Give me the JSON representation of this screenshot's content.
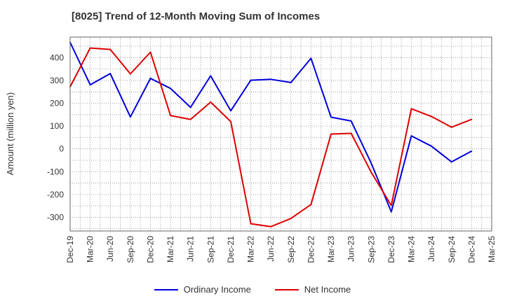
{
  "chart_data": {
    "type": "line",
    "title": "[8025]  Trend of 12-Month Moving Sum of Incomes",
    "xlabel": "",
    "ylabel": "Amount (million yen)",
    "ylim": [
      -360,
      490
    ],
    "yticks": [
      -300,
      -200,
      -100,
      0,
      100,
      200,
      300,
      400
    ],
    "grid": true,
    "legend_position": "bottom-center",
    "categories": [
      "Dec-19",
      "Mar-20",
      "Jun-20",
      "Sep-20",
      "Dec-20",
      "Mar-21",
      "Jun-21",
      "Sep-21",
      "Dec-21",
      "Mar-22",
      "Jun-22",
      "Sep-22",
      "Dec-22",
      "Mar-23",
      "Jun-23",
      "Sep-23",
      "Dec-23",
      "Mar-24",
      "Jun-24",
      "Sep-24",
      "Dec-24",
      "Mar-25"
    ],
    "series": [
      {
        "name": "Ordinary Income",
        "color": "#0000dd",
        "values": [
          467,
          281,
          330,
          140,
          309,
          265,
          182,
          320,
          167,
          301,
          305,
          291,
          397,
          139,
          122,
          -63,
          -276,
          57,
          12,
          -57,
          -10,
          null
        ]
      },
      {
        "name": "Net Income",
        "color": "#dd0000",
        "values": [
          272,
          442,
          436,
          329,
          424,
          146,
          129,
          205,
          120,
          -328,
          -341,
          -305,
          -244,
          65,
          68,
          -103,
          -248,
          176,
          142,
          95,
          129,
          null
        ]
      }
    ]
  }
}
